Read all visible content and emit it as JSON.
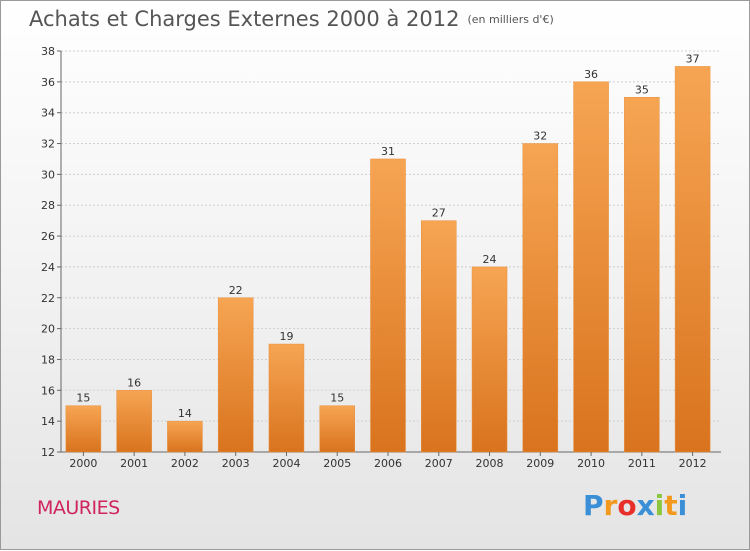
{
  "header": {
    "title": "Achats et Charges Externes 2000 à 2012",
    "unit": "(en milliers d'€)"
  },
  "footer": {
    "place": "MAURIES",
    "logo_letters": [
      "P",
      "r",
      "o",
      "x",
      "i",
      "t",
      "i"
    ],
    "logo_colors": [
      "#3a8fd6",
      "#f39a1e",
      "#e8302a",
      "#3a8fd6",
      "#8cc63f",
      "#f39a1e",
      "#3a8fd6"
    ]
  },
  "colors": {
    "bar_top": "#f6a553",
    "bar_bottom": "#d9731e",
    "grid": "#cfcfcf",
    "axis_text": "#333333"
  },
  "chart_data": {
    "type": "bar",
    "title": "Achats et Charges Externes 2000 à 2012",
    "subtitle": "(en milliers d'€)",
    "categories": [
      "2000",
      "2001",
      "2002",
      "2003",
      "2004",
      "2005",
      "2006",
      "2007",
      "2008",
      "2009",
      "2010",
      "2011",
      "2012"
    ],
    "values": [
      15,
      16,
      14,
      22,
      19,
      15,
      31,
      27,
      24,
      32,
      36,
      35,
      37
    ],
    "ylim": [
      12,
      38
    ],
    "yticks": [
      12,
      14,
      16,
      18,
      20,
      22,
      24,
      26,
      28,
      30,
      32,
      34,
      36,
      38
    ],
    "grid": true,
    "legend": "none"
  }
}
